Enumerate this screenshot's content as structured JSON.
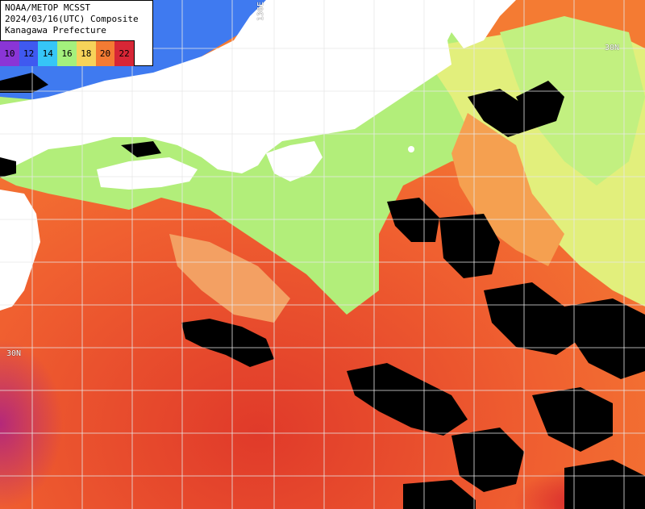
{
  "header": {
    "line1": "NOAA/METOP MCSST",
    "line2": "2024/03/16(UTC) Composite",
    "line3": "Kanagawa Prefecture"
  },
  "colorbar": {
    "ticks": [
      {
        "label": "10",
        "color": "#8a35d6"
      },
      {
        "label": "12",
        "color": "#3f59f0"
      },
      {
        "label": "14",
        "color": "#36c6f7"
      },
      {
        "label": "16",
        "color": "#a4f07d"
      },
      {
        "label": "18",
        "color": "#f6d35a"
      },
      {
        "label": "20",
        "color": "#f47b33"
      },
      {
        "label": "22",
        "color": "#d72636"
      }
    ]
  },
  "grid_labels": {
    "lon_136": "136E",
    "lat_30": "30N",
    "lat_top_right": "30N"
  },
  "colors": {
    "land": "#ffffff",
    "cloud": "#000000",
    "grid": "#e8e8e8"
  }
}
